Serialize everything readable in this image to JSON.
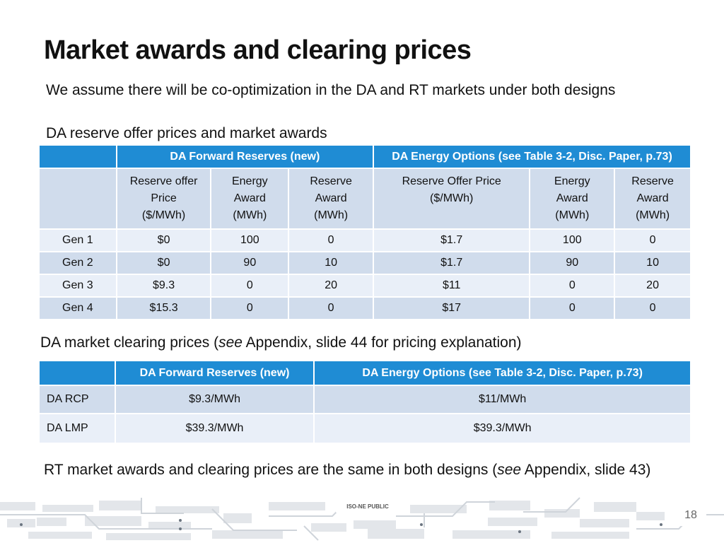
{
  "title": "Market awards and clearing prices",
  "subtitle": "We assume there will be co-optimization in the DA and RT markets under both designs",
  "section1_heading": "DA reserve offer prices and market awards",
  "table1": {
    "group_headers": [
      "DA Forward Reserves (new)",
      "DA Energy Options (see Table 3-2, Disc. Paper, p.73)"
    ],
    "sub_headers": [
      [
        "Reserve offer",
        "Price",
        "($/MWh)"
      ],
      [
        "Energy",
        "Award",
        "(MWh)"
      ],
      [
        "Reserve",
        "Award",
        "(MWh)"
      ],
      [
        "Reserve Offer Price",
        "($/MWh)"
      ],
      [
        "Energy",
        "Award",
        "(MWh)"
      ],
      [
        "Reserve",
        "Award",
        "(MWh)"
      ]
    ],
    "rows": [
      {
        "label": "Gen 1",
        "cells": [
          "$0",
          "100",
          "0",
          "$1.7",
          "100",
          "0"
        ]
      },
      {
        "label": "Gen 2",
        "cells": [
          "$0",
          "90",
          "10",
          "$1.7",
          "90",
          "10"
        ]
      },
      {
        "label": "Gen 3",
        "cells": [
          "$9.3",
          "0",
          "20",
          "$11",
          "0",
          "20"
        ]
      },
      {
        "label": "Gen 4",
        "cells": [
          "$15.3",
          "0",
          "0",
          "$17",
          "0",
          "0"
        ]
      }
    ]
  },
  "section2_heading": {
    "prefix": "DA market clearing prices (",
    "italic": "see",
    "suffix": " Appendix, slide 44 for pricing explanation)"
  },
  "table2": {
    "headers": [
      "DA Forward Reserves (new)",
      "DA Energy Options (see Table 3-2, Disc. Paper, p.73)"
    ],
    "rows": [
      {
        "label": "DA RCP",
        "cells": [
          "$9.3/MWh",
          "$11/MWh"
        ]
      },
      {
        "label": "DA LMP",
        "cells": [
          "$39.3/MWh",
          "$39.3/MWh"
        ]
      }
    ]
  },
  "section3": {
    "prefix": "RT market awards and clearing prices are the same in both designs (",
    "italic": "see",
    "suffix": " Appendix, slide 43)"
  },
  "footer": {
    "label": "ISO-NE PUBLIC",
    "page_number": "18"
  },
  "colors": {
    "header_blue": "#1f8cd4",
    "row_dark": "#d0dcec",
    "row_light": "#e9eff8"
  }
}
